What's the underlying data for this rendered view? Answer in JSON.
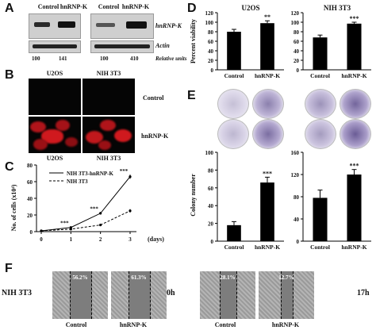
{
  "panels": {
    "A": "A",
    "B": "B",
    "C": "C",
    "D": "D",
    "E": "E",
    "F": "F"
  },
  "A": {
    "lane_labels": [
      "Control",
      "hnRNP-K",
      "Control",
      "hnRNP-K"
    ],
    "row_labels": [
      "hnRNP-K",
      "Actin",
      "Relative units"
    ],
    "values": [
      "100",
      "141",
      "100",
      "410"
    ]
  },
  "B": {
    "col_labels": [
      "U2OS",
      "NIH 3T3"
    ],
    "bottom_labels": [
      "U2OS",
      "NIH 3T3"
    ],
    "row_labels": [
      "Control",
      "hnRNP-K"
    ]
  },
  "C": {
    "ylabel": "No. of cells (x10⁴)",
    "xunit": "(days)",
    "legend": [
      "NIH 3T3-hnRNP-K",
      "NIH 3T3"
    ],
    "sig": [
      "***",
      "***",
      "***"
    ],
    "chart_data": {
      "type": "line",
      "x": [
        0,
        1,
        2,
        3
      ],
      "xticks": [
        "0",
        "1",
        "2",
        "3"
      ],
      "yticks": [
        "0",
        "20",
        "40",
        "60",
        "80"
      ],
      "ylim": [
        0,
        80
      ],
      "series": [
        {
          "name": "NIH 3T3-hnRNP-K",
          "values": [
            1,
            5,
            22,
            66
          ],
          "err": [
            0.5,
            1,
            1.5,
            2.5
          ],
          "style": "solid"
        },
        {
          "name": "NIH 3T3",
          "values": [
            1,
            3,
            8,
            25
          ],
          "err": [
            0.5,
            0.8,
            1,
            2
          ],
          "style": "dashed"
        }
      ]
    }
  },
  "D": {
    "ylabel": "Percent viability",
    "charts": [
      {
        "title": "U2OS",
        "categories": [
          "Control",
          "hnRNP-K"
        ],
        "values": [
          80,
          98
        ],
        "err": [
          5,
          5
        ],
        "ylim": [
          0,
          120
        ],
        "yticks": [
          "0",
          "20",
          "40",
          "60",
          "80",
          "100",
          "120"
        ],
        "sig": "**"
      },
      {
        "title": "NIH 3T3",
        "categories": [
          "Control",
          "hnRNP-K"
        ],
        "values": [
          68,
          97
        ],
        "err": [
          5,
          3
        ],
        "ylim": [
          0,
          120
        ],
        "yticks": [
          "0",
          "20",
          "40",
          "60",
          "80",
          "100",
          "120"
        ],
        "sig": "***"
      }
    ]
  },
  "E": {
    "ylabel": "Colony number",
    "charts": [
      {
        "categories": [
          "Control",
          "hnRNP-K"
        ],
        "values": [
          18,
          66
        ],
        "err": [
          4,
          6
        ],
        "ylim": [
          0,
          100
        ],
        "yticks": [
          "0",
          "20",
          "40",
          "60",
          "80",
          "100"
        ],
        "sig": "***"
      },
      {
        "categories": [
          "Control",
          "hnRNP-K"
        ],
        "values": [
          78,
          120
        ],
        "err": [
          14,
          9
        ],
        "ylim": [
          0,
          160
        ],
        "yticks": [
          "0",
          "40",
          "80",
          "120",
          "160"
        ],
        "sig": "***"
      }
    ]
  },
  "F": {
    "cell_label": "NIH 3T3",
    "pct": [
      "56.2%",
      "61.3%",
      "28.1%",
      "12.7%"
    ],
    "time": [
      "0h",
      "17h"
    ],
    "bottom_labels": [
      "Control",
      "hnRNP-K",
      "Control",
      "hnRNP-K"
    ]
  },
  "colors": {
    "fluor_red": "#c0181c",
    "plate_purple": "#5a4a8a",
    "bar": "#000000"
  }
}
